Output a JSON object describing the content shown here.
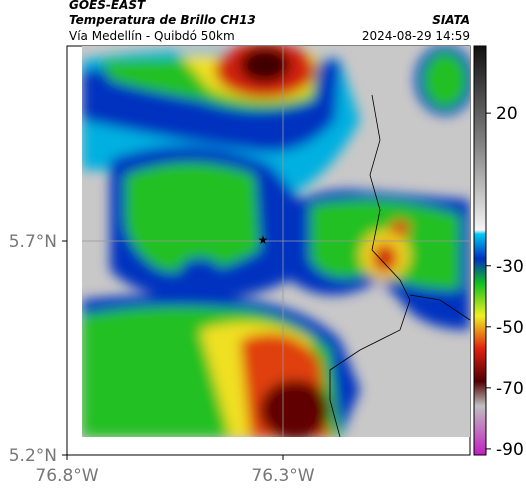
{
  "header": {
    "title": "GOES-EAST",
    "subtitle": "Temperatura de Brillo CH13",
    "source": "SIATA",
    "location": "Vía Medellín - Quibdó 50km",
    "datetime": "2024-08-29 14:59"
  },
  "map": {
    "lat_ticks": [
      "5.7°N",
      "5.2°N"
    ],
    "lon_ticks": [
      "76.8°W",
      "76.3°W"
    ]
  },
  "colorbar": {
    "range": [
      -92,
      42
    ],
    "ticks": [
      20,
      -30,
      -50,
      -70,
      -90
    ]
  }
}
